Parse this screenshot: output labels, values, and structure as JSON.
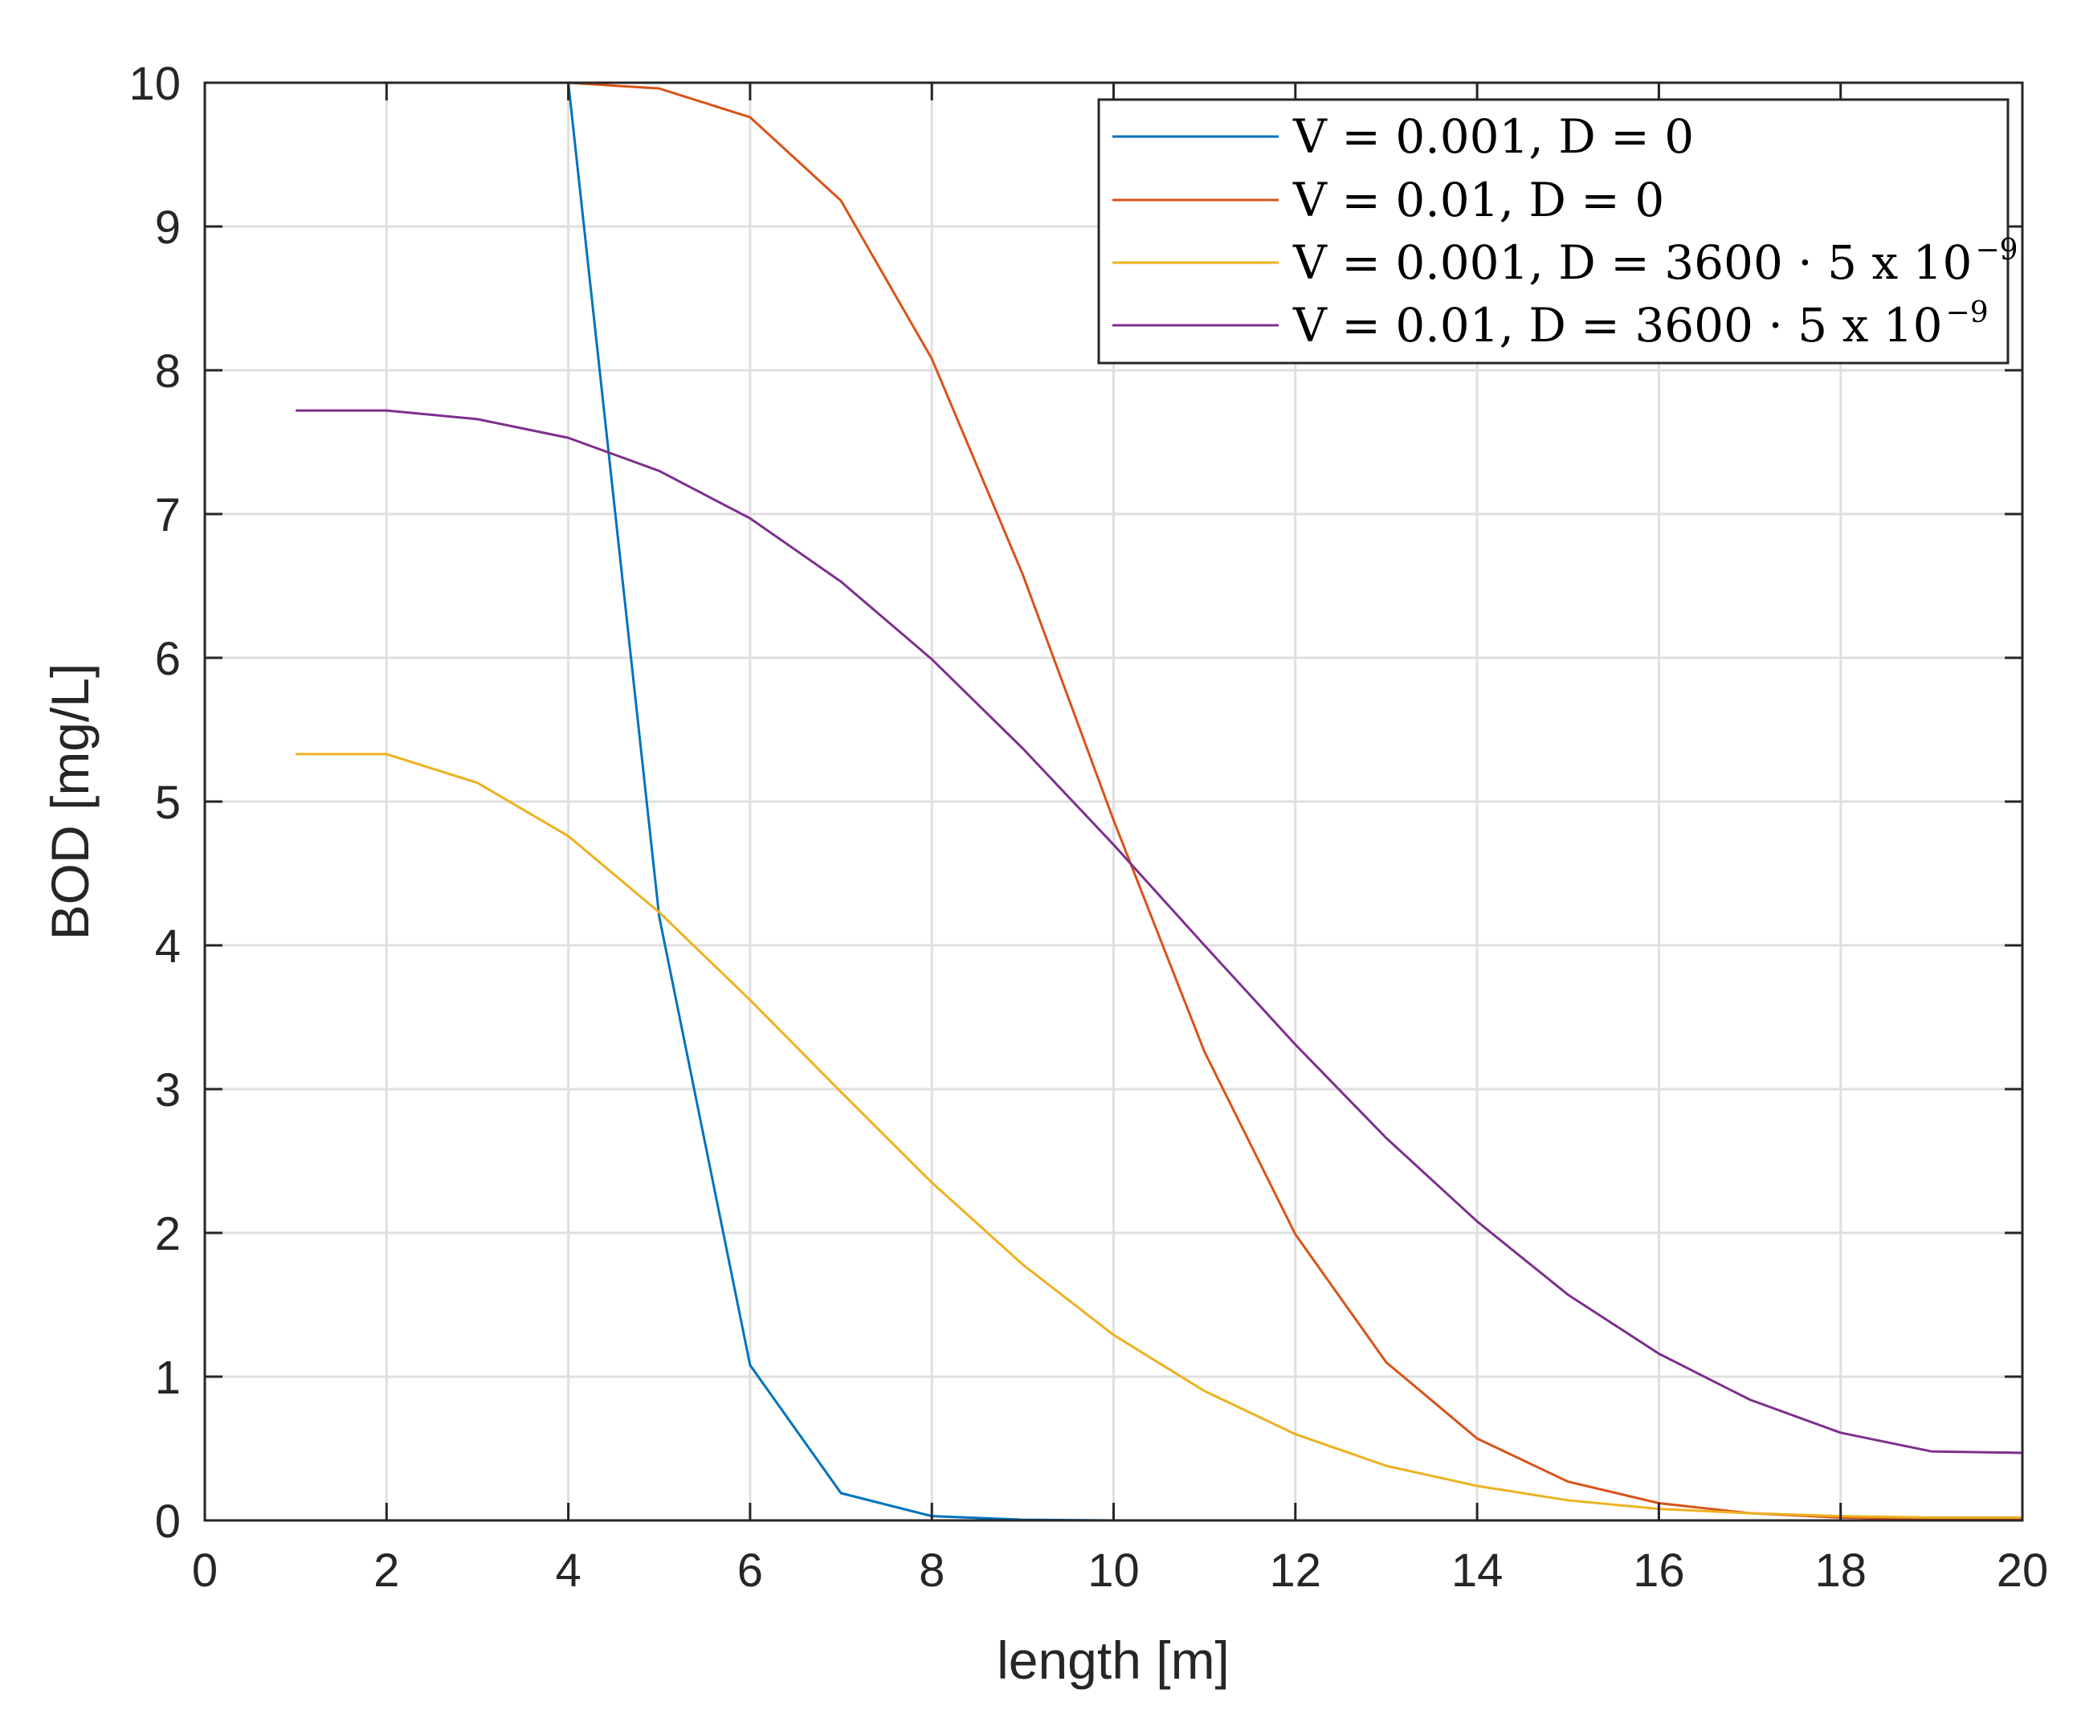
{
  "chart_data": {
    "type": "line",
    "title": "",
    "xlabel": "length [m]",
    "ylabel": "BOD [mg/L]",
    "xlim": [
      0,
      20
    ],
    "ylim": [
      0,
      10
    ],
    "xticks": [
      0,
      2,
      4,
      6,
      8,
      10,
      12,
      14,
      16,
      18,
      20
    ],
    "yticks": [
      0,
      1,
      2,
      3,
      4,
      5,
      6,
      7,
      8,
      9,
      10
    ],
    "grid": true,
    "legend_position": "top-right",
    "x": [
      1,
      2,
      3,
      4,
      5,
      6,
      7,
      8,
      9,
      10,
      11,
      12,
      13,
      14,
      15,
      16,
      17,
      18,
      19,
      20
    ],
    "series": [
      {
        "name": "V = 0.001, D = 0",
        "label_main": "V = 0.001, D = 0",
        "label_exp": "",
        "color": "#0072BD",
        "values": [
          10,
          10,
          10,
          10,
          4.2,
          1.08,
          0.19,
          0.03,
          0.005,
          0,
          0,
          0,
          0,
          0,
          0,
          0,
          0,
          0,
          0,
          0
        ]
      },
      {
        "name": "V = 0.01, D = 0",
        "label_main": "V = 0.01, D = 0",
        "label_exp": "",
        "color": "#D95319",
        "values": [
          10,
          10,
          10,
          10,
          9.96,
          9.76,
          9.18,
          8.08,
          6.58,
          4.87,
          3.26,
          1.99,
          1.1,
          0.57,
          0.27,
          0.12,
          0.05,
          0.02,
          0.01,
          0.01
        ]
      },
      {
        "name": "V = 0.001, D = 3600 · 5 x 10^-9",
        "label_main": "V = 0.001, D = 3600 · 5 x 10",
        "label_exp": "−9",
        "color": "#EDB120",
        "values": [
          5.33,
          5.33,
          5.13,
          4.76,
          4.23,
          3.62,
          2.98,
          2.35,
          1.78,
          1.29,
          0.9,
          0.6,
          0.38,
          0.24,
          0.14,
          0.08,
          0.05,
          0.03,
          0.02,
          0.02
        ]
      },
      {
        "name": "V = 0.01, D = 3600 · 5 x 10^-9",
        "label_main": "V = 0.01, D = 3600 · 5 x 10",
        "label_exp": "−9",
        "color": "#7E2F8E",
        "values": [
          7.72,
          7.72,
          7.66,
          7.53,
          7.3,
          6.97,
          6.53,
          5.99,
          5.37,
          4.7,
          4.0,
          3.31,
          2.66,
          2.08,
          1.57,
          1.16,
          0.84,
          0.61,
          0.48,
          0.47
        ]
      }
    ]
  }
}
